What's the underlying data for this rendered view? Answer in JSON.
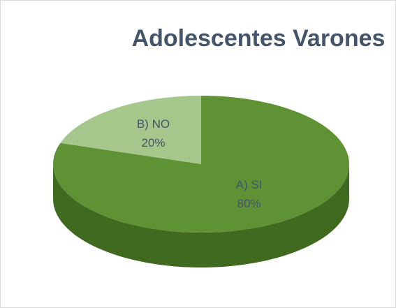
{
  "chart_data": {
    "type": "pie",
    "title": "Adolescentes Varones",
    "categories": [
      "A) SI",
      "B) NO"
    ],
    "values": [
      80,
      20
    ],
    "value_labels": [
      "80%",
      "20%"
    ],
    "colors": [
      "#5e9234",
      "#a6c78c"
    ],
    "side_colors": [
      "#3f6a1f",
      "#7fa366"
    ]
  }
}
